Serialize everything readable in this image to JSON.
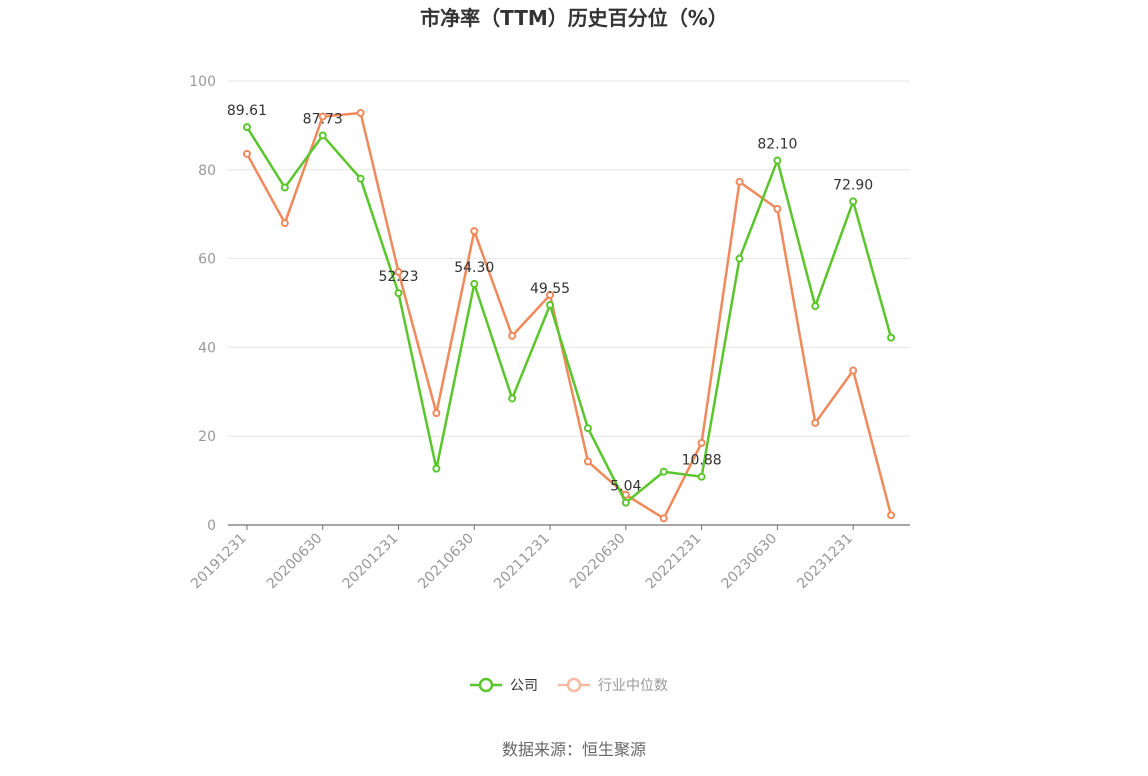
{
  "chart_data": {
    "type": "line",
    "title": "市净率（TTM）历史百分位（%）",
    "source": "数据来源：恒生聚源",
    "ylim": [
      0,
      100
    ],
    "y_ticks": [
      0,
      20,
      40,
      60,
      80,
      100
    ],
    "x": [
      "20191231",
      "20200331",
      "20200630",
      "20200930",
      "20201231",
      "20210331",
      "20210630",
      "20210930",
      "20211231",
      "20220331",
      "20220630",
      "20220930",
      "20221231",
      "20230331",
      "20230630",
      "20230930",
      "20231231",
      "20240331"
    ],
    "x_tick_labels": [
      "20191231",
      "20200630",
      "20201231",
      "20210630",
      "20211231",
      "20220630",
      "20221231",
      "20230630",
      "20231231"
    ],
    "grid": true,
    "legend_position": "bottom",
    "series": [
      {
        "name": "公司",
        "color": "#5ac62c",
        "values": [
          89.61,
          76.0,
          87.73,
          78.0,
          52.23,
          12.7,
          54.3,
          28.5,
          49.55,
          21.8,
          5.04,
          12.0,
          10.88,
          60.0,
          82.1,
          49.3,
          72.9,
          42.2
        ],
        "labels": {
          "0": "89.61",
          "2": "87.73",
          "4": "52.23",
          "6": "54.30",
          "8": "49.55",
          "10": "5.04",
          "12": "10.88",
          "14": "82.10",
          "16": "72.90"
        }
      },
      {
        "name": "行业中位数",
        "color": "#f0895c",
        "values": [
          83.6,
          68.0,
          92.0,
          92.8,
          57.0,
          25.2,
          66.2,
          42.6,
          51.8,
          14.3,
          6.8,
          1.5,
          18.5,
          77.3,
          71.2,
          23.0,
          34.8,
          2.2
        ]
      }
    ]
  }
}
